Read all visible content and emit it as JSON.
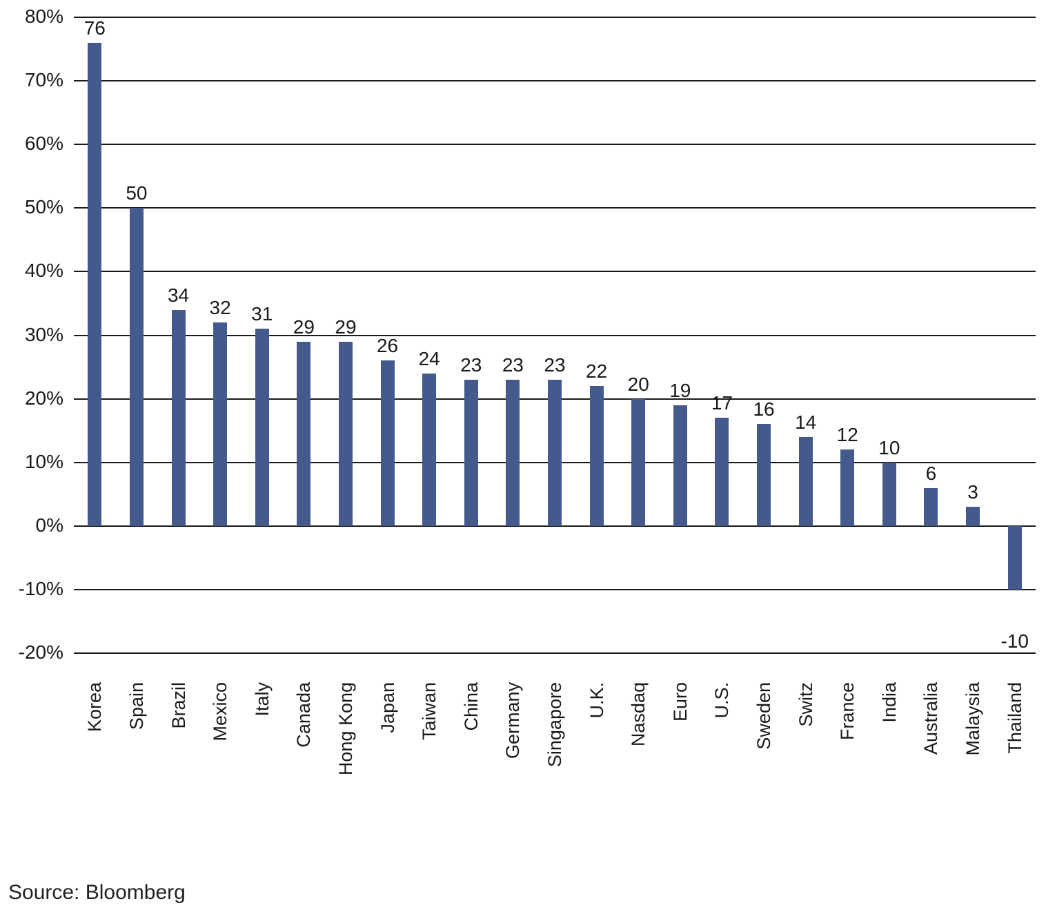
{
  "chart_data": {
    "type": "bar",
    "categories": [
      "Korea",
      "Spain",
      "Brazil",
      "Mexico",
      "Italy",
      "Canada",
      "Hong Kong",
      "Japan",
      "Taiwan",
      "China",
      "Germany",
      "Singapore",
      "U.K.",
      "Nasdaq",
      "Euro",
      "U.S.",
      "Sweden",
      "Switz",
      "France",
      "India",
      "Australia",
      "Malaysia",
      "Thailand"
    ],
    "values": [
      76,
      50,
      34,
      32,
      31,
      29,
      29,
      26,
      24,
      23,
      23,
      23,
      22,
      20,
      19,
      17,
      16,
      14,
      12,
      10,
      6,
      3,
      -10
    ],
    "value_labels": [
      "76",
      "50",
      "34",
      "32",
      "31",
      "29",
      "29",
      "26",
      "24",
      "23",
      "23",
      "23",
      "22",
      "20",
      "19",
      "17",
      "16",
      "14",
      "12",
      "10",
      "6",
      "3",
      "-10"
    ],
    "title": "",
    "xlabel": "",
    "ylabel": "",
    "ylim": [
      -20,
      80
    ],
    "yticks": [
      80,
      70,
      60,
      50,
      40,
      30,
      20,
      10,
      0,
      -10,
      -20
    ],
    "ytick_labels": [
      "80%",
      "70%",
      "60%",
      "50%",
      "40%",
      "30%",
      "20%",
      "10%",
      "0%",
      "-10%",
      "-20%"
    ],
    "grid": true,
    "legend": false,
    "bar_color": "#455A8C",
    "gridline_color": "#1A1A1A",
    "text_color": "#1A1A1A"
  },
  "footer": {
    "source_label": "Source: Bloomberg"
  }
}
